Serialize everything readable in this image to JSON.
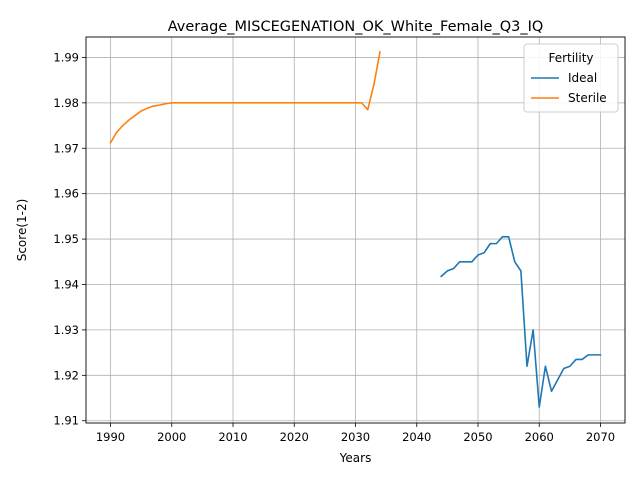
{
  "chart_data": {
    "type": "line",
    "title": "Average_MISCEGENATION_OK_White_Female_Q3_IQ",
    "xlabel": "Years",
    "ylabel": "Score(1-2)",
    "xlim": [
      1986,
      2074
    ],
    "ylim": [
      1.9095,
      1.9945
    ],
    "xticks": [
      1990,
      2000,
      2010,
      2020,
      2030,
      2040,
      2050,
      2060,
      2070
    ],
    "yticks": [
      1.91,
      1.92,
      1.93,
      1.94,
      1.95,
      1.96,
      1.97,
      1.98,
      1.99
    ],
    "xtick_labels": [
      "1990",
      "2000",
      "2010",
      "2020",
      "2030",
      "2040",
      "2050",
      "2060",
      "2070"
    ],
    "ytick_labels": [
      "1.91",
      "1.92",
      "1.93",
      "1.94",
      "1.95",
      "1.96",
      "1.97",
      "1.98",
      "1.99"
    ],
    "grid": true,
    "legend": {
      "title": "Fertility",
      "placement": "top-right"
    },
    "series": [
      {
        "name": "Ideal",
        "color": "#1f77b4",
        "x": [
          2044,
          2045,
          2046,
          2047,
          2048,
          2049,
          2050,
          2051,
          2052,
          2053,
          2054,
          2055,
          2056,
          2057,
          2058,
          2059,
          2060,
          2061,
          2062,
          2063,
          2064,
          2065,
          2066,
          2067,
          2068,
          2069,
          2070
        ],
        "y": [
          1.9418,
          1.943,
          1.9435,
          1.945,
          1.945,
          1.945,
          1.9465,
          1.947,
          1.949,
          1.949,
          1.9505,
          1.9505,
          1.945,
          1.943,
          1.922,
          1.93,
          1.913,
          1.922,
          1.9165,
          1.919,
          1.9215,
          1.922,
          1.9235,
          1.9235,
          1.9245,
          1.9245,
          1.9245
        ]
      },
      {
        "name": "Sterile",
        "color": "#ff7f0e",
        "x": [
          1990,
          1991,
          1992,
          1993,
          1994,
          1995,
          1996,
          1997,
          1998,
          1999,
          2000,
          2005,
          2010,
          2015,
          2020,
          2025,
          2030,
          2031,
          2032,
          2033,
          2034
        ],
        "y": [
          1.9712,
          1.9735,
          1.975,
          1.9762,
          1.9772,
          1.9782,
          1.9788,
          1.9793,
          1.9795,
          1.9798,
          1.98,
          1.98,
          1.98,
          1.98,
          1.98,
          1.98,
          1.98,
          1.98,
          1.9785,
          1.984,
          1.9912
        ]
      }
    ]
  }
}
